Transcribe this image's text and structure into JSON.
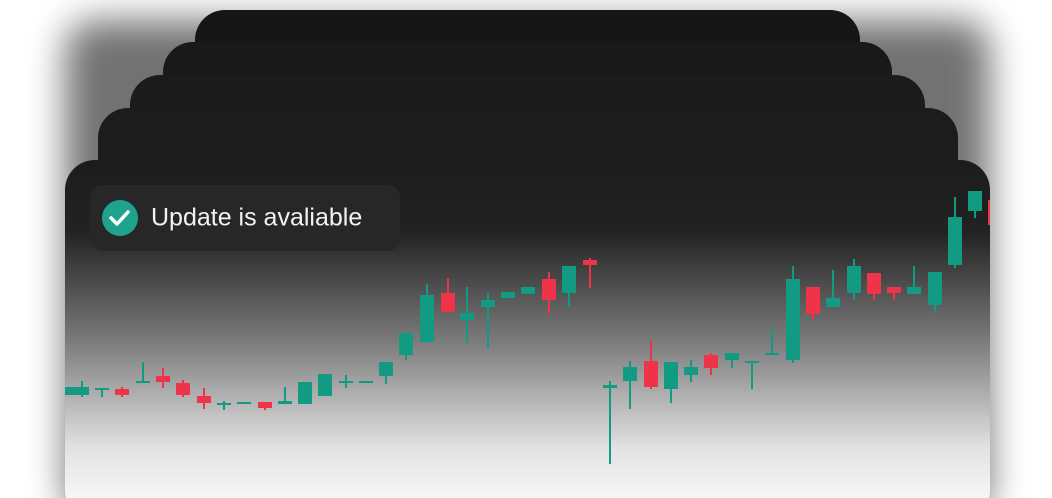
{
  "toast": {
    "text": "Update is avaliable"
  }
}
